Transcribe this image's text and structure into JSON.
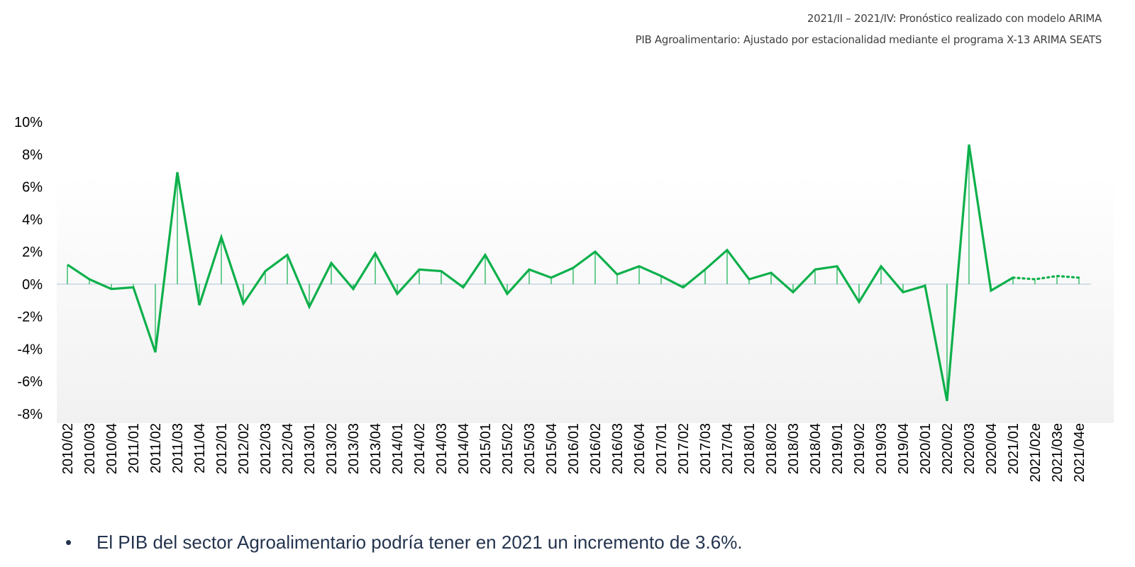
{
  "notes": {
    "forecast": "2021/II – 2021/IV:  Pronóstico realizado con modelo ARIMA",
    "seasonal": "PIB Agroalimentario: Ajustado por estacionalidad mediante el programa X-13 ARIMA SEATS"
  },
  "bullet": {
    "marker": "•",
    "text": "El PIB del sector Agroalimentario podría tener en 2021 un incremento de 3.6%."
  },
  "colors": {
    "line": "#0db04b",
    "zero_line": "#c5d5e0"
  },
  "chart_data": {
    "type": "line",
    "ylim": [
      -8,
      10
    ],
    "yticks": [
      10,
      8,
      6,
      4,
      2,
      0,
      -2,
      -4,
      -6,
      -8
    ],
    "ytick_labels": [
      "10%",
      "8%",
      "6%",
      "4%",
      "2%",
      "0%",
      "-2%",
      "-4%",
      "-6%",
      "-8%"
    ],
    "categories": [
      "2010/02",
      "2010/03",
      "2010/04",
      "2011/01",
      "2011/02",
      "2011/03",
      "2011/04",
      "2012/01",
      "2012/02",
      "2012/03",
      "2012/04",
      "2013/01",
      "2013/02",
      "2013/03",
      "2013/04",
      "2014/01",
      "2014/02",
      "2014/03",
      "2014/04",
      "2015/01",
      "2015/02",
      "2015/03",
      "2015/04",
      "2016/01",
      "2016/02",
      "2016/03",
      "2016/04",
      "2017/01",
      "2017/02",
      "2017/03",
      "2017/04",
      "2018/01",
      "2018/02",
      "2018/03",
      "2018/04",
      "2019/01",
      "2019/02",
      "2019/03",
      "2019/04",
      "2020/01",
      "2020/02",
      "2020/03",
      "2020/04",
      "2021/01",
      "2021/02e",
      "2021/03e",
      "2021/04e"
    ],
    "values": [
      1.2,
      0.3,
      -0.3,
      -0.2,
      -4.2,
      6.9,
      -1.3,
      2.9,
      -1.2,
      0.8,
      1.8,
      -1.4,
      1.3,
      -0.3,
      1.9,
      -0.6,
      0.9,
      0.8,
      -0.2,
      1.8,
      -0.6,
      0.9,
      0.4,
      1.0,
      2.0,
      0.6,
      1.1,
      0.5,
      -0.2,
      0.9,
      2.1,
      0.3,
      0.7,
      -0.5,
      0.9,
      1.1,
      -1.1,
      1.1,
      -0.5,
      -0.1,
      -7.2,
      8.6,
      -0.4,
      0.4,
      0.3,
      0.5,
      0.4
    ],
    "forecast_start_index": 43,
    "grid": false,
    "legend": "none"
  }
}
